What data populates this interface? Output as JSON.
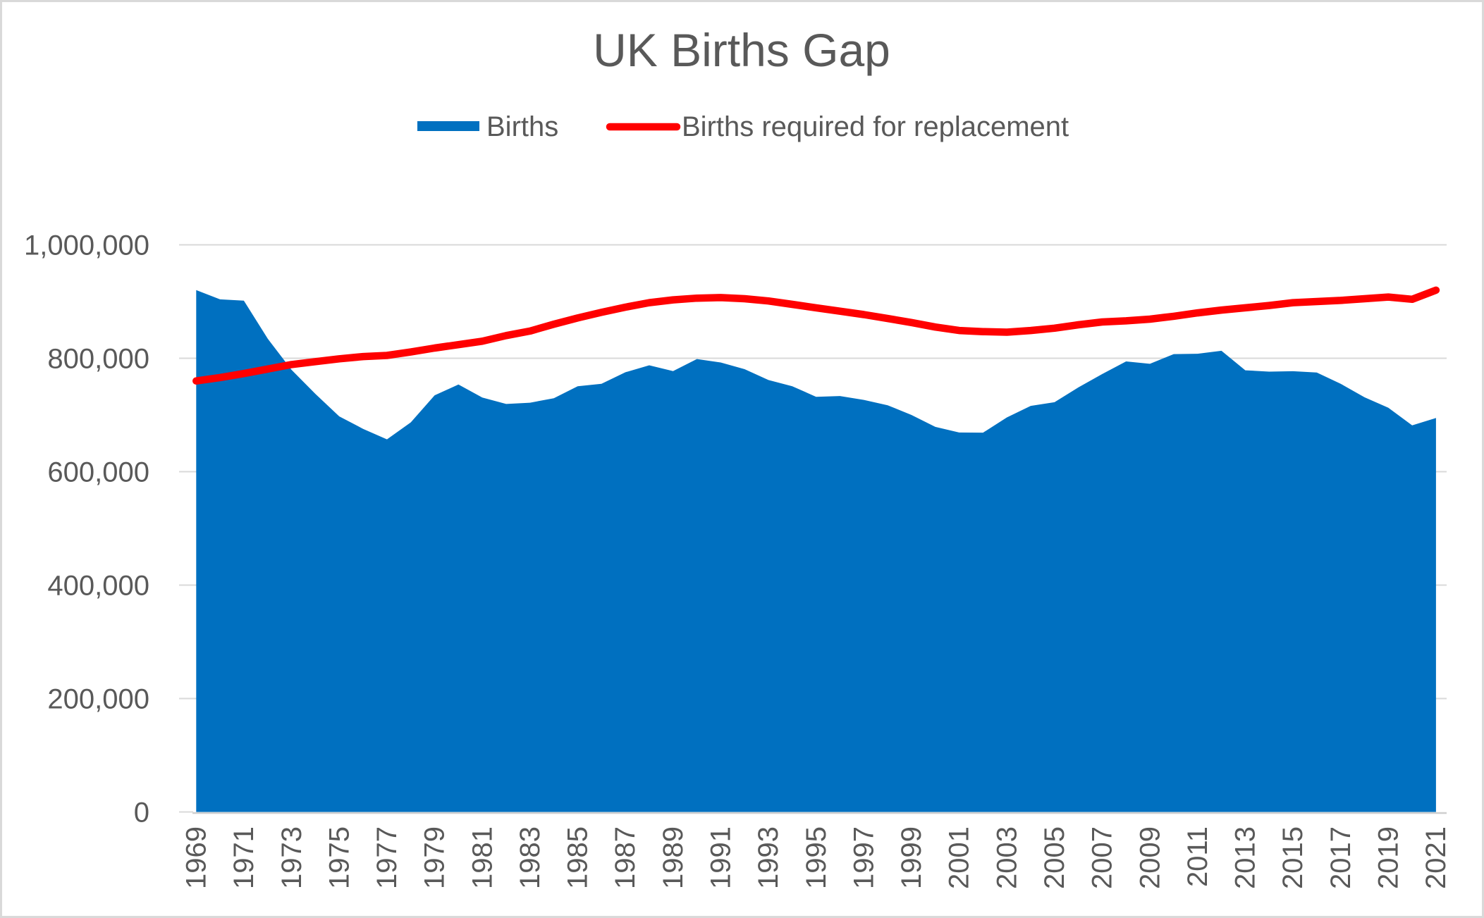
{
  "chart_data": {
    "type": "area",
    "title": "UK Births Gap",
    "x": [
      1969,
      1970,
      1971,
      1972,
      1973,
      1974,
      1975,
      1976,
      1977,
      1978,
      1979,
      1980,
      1981,
      1982,
      1983,
      1984,
      1985,
      1986,
      1987,
      1988,
      1989,
      1990,
      1991,
      1992,
      1993,
      1994,
      1995,
      1996,
      1997,
      1998,
      1999,
      2000,
      2001,
      2002,
      2003,
      2004,
      2005,
      2006,
      2007,
      2008,
      2009,
      2010,
      2011,
      2012,
      2013,
      2014,
      2015,
      2016,
      2017,
      2018,
      2019,
      2020,
      2021
    ],
    "series": [
      {
        "name": "Births",
        "type": "area",
        "color": "#0070C0",
        "values": [
          920300,
          903900,
          901600,
          834400,
          779500,
          737100,
          697500,
          675500,
          657000,
          687000,
          734700,
          753700,
          730800,
          719400,
          721600,
          729600,
          750700,
          755000,
          775300,
          787600,
          777400,
          798600,
          792500,
          780800,
          761600,
          750700,
          732000,
          733400,
          726600,
          717100,
          700000,
          679000,
          669100,
          668800,
          695600,
          716000,
          722500,
          748600,
          772200,
          794400,
          790200,
          807300,
          808000,
          813200,
          778800,
          776400,
          777200,
          774800,
          755000,
          731200,
          712700,
          681600,
          694700
        ]
      },
      {
        "name": "Births required for replacement",
        "type": "line",
        "color": "#FF0000",
        "stroke_width": 10.5,
        "values": [
          760000,
          766000,
          773000,
          781000,
          789000,
          794000,
          799000,
          803000,
          805000,
          811000,
          818000,
          824000,
          830000,
          840000,
          848000,
          860000,
          871000,
          881000,
          890000,
          898000,
          903000,
          906000,
          907000,
          905000,
          901000,
          895000,
          889000,
          883000,
          877000,
          870000,
          863000,
          855000,
          849000,
          847000,
          846000,
          849000,
          853000,
          859000,
          864000,
          866000,
          869000,
          874000,
          880000,
          885000,
          889000,
          893000,
          898000,
          900000,
          902000,
          905000,
          908000,
          904000,
          920000
        ]
      }
    ],
    "xlabel": "",
    "ylabel": "",
    "ylim": [
      0,
      1000000
    ],
    "y_ticks": [
      0,
      200000,
      400000,
      600000,
      800000,
      1000000
    ],
    "y_tick_labels": [
      "0",
      "200,000",
      "400,000",
      "600,000",
      "800,000",
      "1,000,000"
    ],
    "x_tick_labels_shown": [
      "1969",
      "1971",
      "1973",
      "1975",
      "1977",
      "1979",
      "1981",
      "1983",
      "1985",
      "1987",
      "1989",
      "1991",
      "1993",
      "1995",
      "1997",
      "1999",
      "2001",
      "2003",
      "2005",
      "2007",
      "2009",
      "2011",
      "2013",
      "2015",
      "2017",
      "2019",
      "2021"
    ],
    "x_tick_label_rotation_degrees": -90,
    "grid": "horizontal-only",
    "legend_position": "top-center",
    "colors": {
      "gridline": "#D9D9D9",
      "axis_line": "#CFCFCF",
      "tick_mark": "#D9D9D9",
      "axis_text": "#595959",
      "title_text": "#595959",
      "background": "#FFFFFF",
      "frame_border": "#D9D9D9"
    }
  }
}
